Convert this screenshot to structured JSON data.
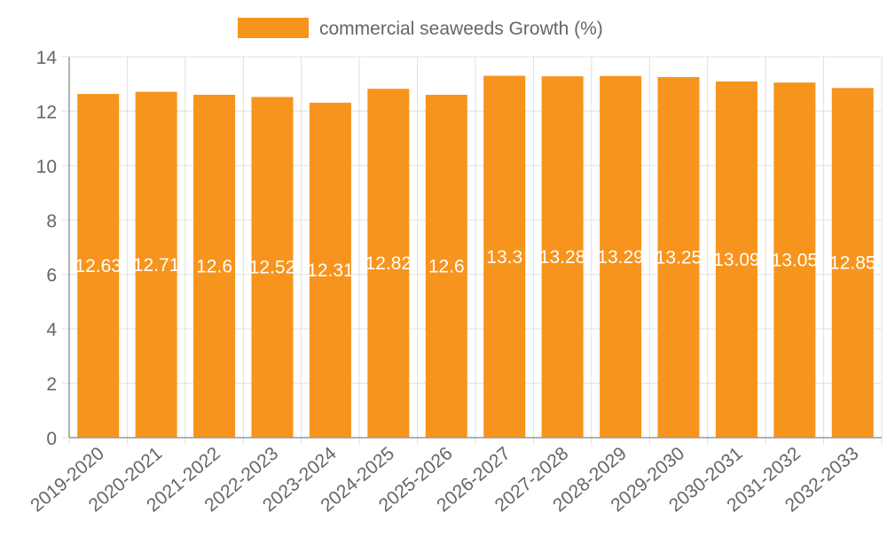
{
  "chart_data": {
    "type": "bar",
    "title": "",
    "xlabel": "",
    "ylabel": "",
    "legend": {
      "label": "commercial seaweeds Growth (%)",
      "position": "top"
    },
    "categories": [
      "2019-2020",
      "2020-2021",
      "2021-2022",
      "2022-2023",
      "2023-2024",
      "2024-2025",
      "2025-2026",
      "2026-2027",
      "2027-2028",
      "2028-2029",
      "2029-2030",
      "2030-2031",
      "2031-2032",
      "2032-2033"
    ],
    "series": [
      {
        "name": "commercial seaweeds Growth (%)",
        "values": [
          12.63,
          12.71,
          12.6,
          12.52,
          12.31,
          12.82,
          12.6,
          13.3,
          13.28,
          13.29,
          13.25,
          13.09,
          13.05,
          12.85
        ]
      }
    ],
    "data_labels": [
      "12.63",
      "12.71",
      "12.6",
      "12.52",
      "12.31",
      "12.82",
      "12.6",
      "13.3",
      "13.28",
      "13.29",
      "13.25",
      "13.09",
      "13.05",
      "12.85"
    ],
    "ylim": [
      0,
      14
    ],
    "yticks": [
      0,
      2,
      4,
      6,
      8,
      10,
      12,
      14
    ],
    "grid": true,
    "colors": {
      "bar": "#f7941d",
      "grid": "#e0e0e0",
      "axis": "#999999",
      "tick_text": "#666666",
      "data_label": "#ffffff"
    }
  }
}
